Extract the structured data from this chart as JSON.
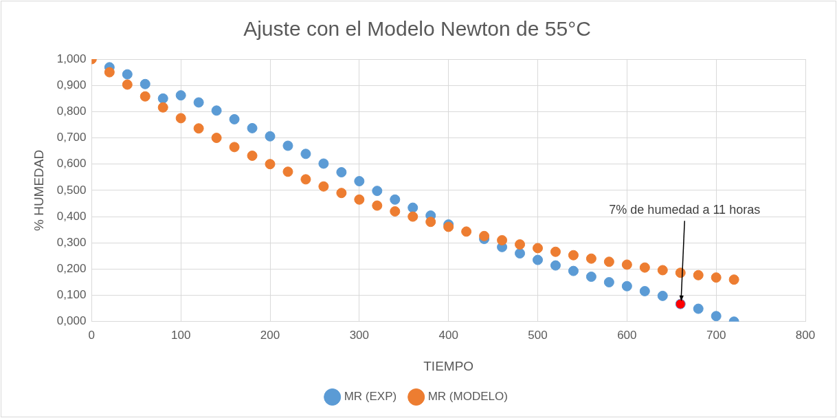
{
  "chart_data": {
    "type": "scatter",
    "title": "Ajuste con el Modelo Newton de 55°C",
    "xlabel": "TIEMPO",
    "ylabel": "% HUMEDAD",
    "x": [
      0,
      20,
      40,
      60,
      80,
      100,
      120,
      140,
      160,
      180,
      200,
      220,
      240,
      260,
      280,
      300,
      320,
      340,
      360,
      380,
      400,
      420,
      440,
      460,
      480,
      500,
      520,
      540,
      560,
      580,
      600,
      620,
      640,
      660,
      680,
      700,
      720
    ],
    "series": [
      {
        "name": "MR (EXP)",
        "color": "#5b9bd5",
        "colors": [
          "#5b9bd5",
          "#5b9bd5",
          "#5b9bd5",
          "#5b9bd5",
          "#5b9bd5",
          "#5b9bd5",
          "#5b9bd5",
          "#5b9bd5",
          "#5b9bd5",
          "#5b9bd5",
          "#5b9bd5",
          "#5b9bd5",
          "#5b9bd5",
          "#5b9bd5",
          "#5b9bd5",
          "#5b9bd5",
          "#5b9bd5",
          "#5b9bd5",
          "#5b9bd5",
          "#5b9bd5",
          "#5b9bd5",
          "#5b9bd5",
          "#5b9bd5",
          "#5b9bd5",
          "#5b9bd5",
          "#5b9bd5",
          "#5b9bd5",
          "#5b9bd5",
          "#5b9bd5",
          "#5b9bd5",
          "#5b9bd5",
          "#5b9bd5",
          "#5b9bd5",
          "#ff0000",
          "#5b9bd5",
          "#5b9bd5",
          "#5b9bd5"
        ],
        "values": [
          null,
          0.969,
          0.942,
          0.905,
          0.85,
          0.862,
          0.835,
          0.804,
          0.771,
          0.737,
          0.706,
          0.67,
          0.639,
          0.602,
          0.569,
          0.535,
          0.498,
          0.465,
          0.434,
          0.404,
          0.37,
          null,
          0.315,
          0.284,
          0.26,
          0.235,
          0.214,
          0.193,
          0.171,
          0.15,
          0.135,
          0.116,
          0.098,
          0.067,
          0.049,
          0.021,
          0.0
        ]
      },
      {
        "name": "MR (MODELO)",
        "color": "#ed7d31",
        "values": [
          1.0,
          0.95,
          0.903,
          0.858,
          0.816,
          0.775,
          0.736,
          0.7,
          0.665,
          0.632,
          0.6,
          0.571,
          0.542,
          0.515,
          0.49,
          0.465,
          0.442,
          0.42,
          0.4,
          0.38,
          0.361,
          0.343,
          0.326,
          0.31,
          0.294,
          0.28,
          0.266,
          0.253,
          0.24,
          0.228,
          0.217,
          0.206,
          0.196,
          0.186,
          0.177,
          0.168,
          0.16
        ]
      }
    ],
    "annotations": [
      {
        "text": "7% de humedad a 11 horas",
        "x": 660,
        "y": 0.067
      }
    ],
    "xlim": [
      0,
      800
    ],
    "xticks": [
      0,
      100,
      200,
      300,
      400,
      500,
      600,
      700,
      800
    ],
    "ylim": [
      0,
      1
    ],
    "yticks": [
      {
        "value": 0,
        "label": "0,000"
      },
      {
        "value": 0.1,
        "label": "0,100"
      },
      {
        "value": 0.2,
        "label": "0,200"
      },
      {
        "value": 0.3,
        "label": "0,300"
      },
      {
        "value": 0.4,
        "label": "0,400"
      },
      {
        "value": 0.5,
        "label": "0,500"
      },
      {
        "value": 0.6,
        "label": "0,600"
      },
      {
        "value": 0.7,
        "label": "0,700"
      },
      {
        "value": 0.8,
        "label": "0,800"
      },
      {
        "value": 0.9,
        "label": "0,900"
      },
      {
        "value": 1,
        "label": "1,000"
      }
    ],
    "grid": true,
    "legend": "bottom",
    "marker": "circle"
  }
}
